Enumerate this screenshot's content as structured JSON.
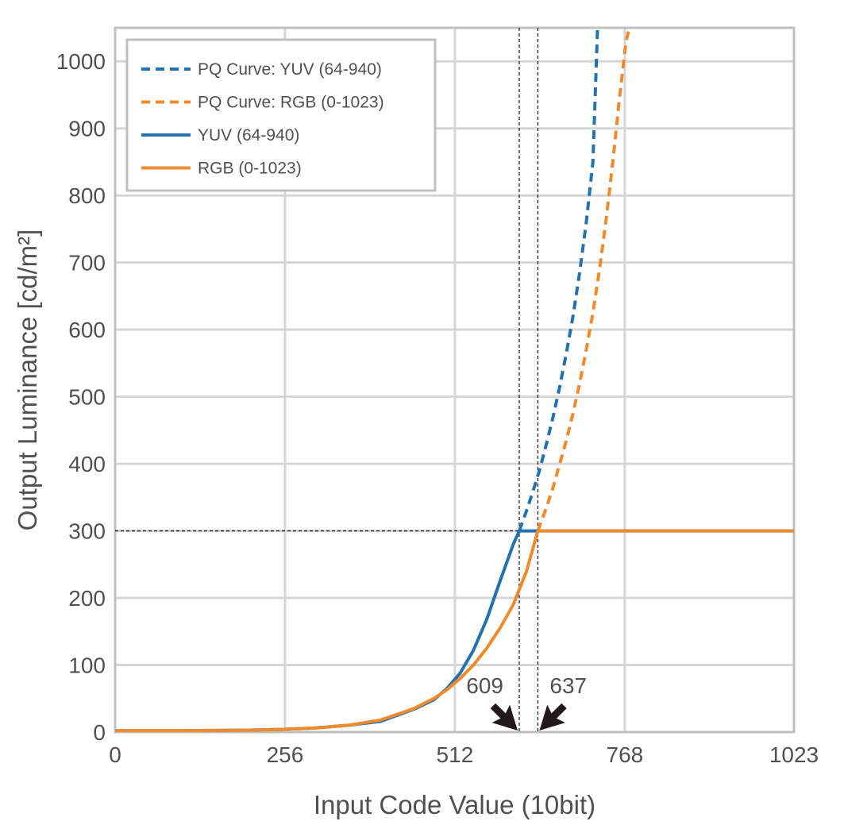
{
  "chart_data": {
    "type": "line",
    "title": "",
    "xlabel": "Input Code Value (10bit)",
    "ylabel": "Output Luminance [cd/m²]",
    "xlim": [
      0,
      1023
    ],
    "ylim": [
      0,
      1050
    ],
    "xticks": [
      0,
      256,
      512,
      768,
      1023
    ],
    "yticks": [
      0,
      100,
      200,
      300,
      400,
      500,
      600,
      700,
      800,
      900,
      1000
    ],
    "grid": true,
    "legend_position": "top-left",
    "colors": {
      "blue": "#2471b0",
      "orange": "#ef8a2d",
      "grid": "#d6d6d6",
      "frame": "#c0c0c0",
      "text": "#505050",
      "guide": "#222222"
    },
    "series": [
      {
        "name": "PQ Curve: YUV (64-940)",
        "color": "#2471b0",
        "style": "dashed",
        "x": [
          609,
          620,
          630,
          640,
          650,
          660,
          670,
          680,
          690,
          700,
          710,
          720,
          727
        ],
        "y": [
          300,
          330,
          360,
          392,
          430,
          470,
          515,
          565,
          620,
          685,
          760,
          850,
          1050
        ]
      },
      {
        "name": "PQ Curve: RGB (0-1023)",
        "color": "#ef8a2d",
        "style": "dashed",
        "x": [
          637,
          650,
          660,
          670,
          680,
          690,
          700,
          710,
          720,
          730,
          740,
          750,
          760,
          770,
          775
        ],
        "y": [
          300,
          335,
          365,
          400,
          435,
          475,
          520,
          570,
          625,
          690,
          765,
          850,
          945,
          1030,
          1050
        ]
      },
      {
        "name": "YUV (64-940)",
        "color": "#2471b0",
        "style": "solid",
        "x": [
          0,
          64,
          100,
          150,
          200,
          250,
          300,
          350,
          400,
          450,
          480,
          500,
          520,
          540,
          560,
          580,
          600,
          609,
          637,
          1023
        ],
        "y": [
          2,
          2,
          2,
          2.5,
          3,
          4,
          6,
          10,
          16,
          34,
          48,
          65,
          88,
          122,
          168,
          225,
          280,
          300,
          300,
          300
        ]
      },
      {
        "name": "RGB (0-1023)",
        "color": "#ef8a2d",
        "style": "solid",
        "x": [
          0,
          100,
          150,
          200,
          250,
          300,
          350,
          400,
          450,
          480,
          500,
          520,
          540,
          560,
          580,
          600,
          620,
          637,
          1023
        ],
        "y": [
          2,
          2,
          2.5,
          3,
          4,
          6,
          10,
          18,
          35,
          50,
          63,
          80,
          100,
          125,
          155,
          190,
          240,
          300,
          300
        ]
      }
    ],
    "reference_lines": {
      "y": 300,
      "x": [
        609,
        637
      ]
    },
    "annotations": [
      {
        "text": "609",
        "x": 609,
        "y": 0
      },
      {
        "text": "637",
        "x": 637,
        "y": 0
      }
    ]
  }
}
